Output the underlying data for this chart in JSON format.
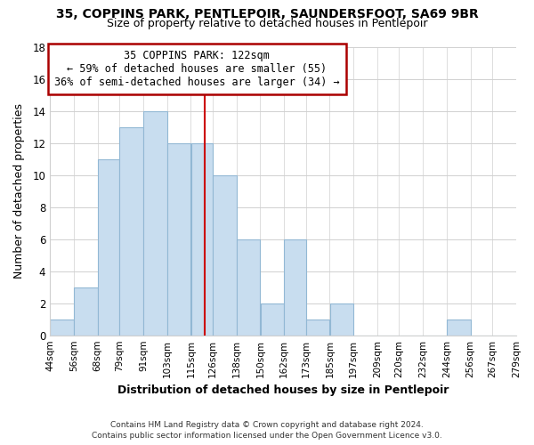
{
  "title": "35, COPPINS PARK, PENTLEPOIR, SAUNDERSFOOT, SA69 9BR",
  "subtitle": "Size of property relative to detached houses in Pentlepoir",
  "xlabel": "Distribution of detached houses by size in Pentlepoir",
  "ylabel": "Number of detached properties",
  "bar_color": "#c8ddef",
  "bar_edge_color": "#92b8d4",
  "background_color": "#ffffff",
  "grid_color": "#d0d0d0",
  "annotation_box_color": "#ffffff",
  "annotation_box_edge": "#aa0000",
  "vertical_line_color": "#cc0000",
  "annotation_line1": "35 COPPINS PARK: 122sqm",
  "annotation_line2": "← 59% of detached houses are smaller (55)",
  "annotation_line3": "36% of semi-detached houses are larger (34) →",
  "property_size": 122,
  "bin_labels": [
    "44sqm",
    "56sqm",
    "68sqm",
    "79sqm",
    "91sqm",
    "103sqm",
    "115sqm",
    "126sqm",
    "138sqm",
    "150sqm",
    "162sqm",
    "173sqm",
    "185sqm",
    "197sqm",
    "209sqm",
    "220sqm",
    "232sqm",
    "244sqm",
    "256sqm",
    "267sqm",
    "279sqm"
  ],
  "bin_edges": [
    44,
    56,
    68,
    79,
    91,
    103,
    115,
    126,
    138,
    150,
    162,
    173,
    185,
    197,
    209,
    220,
    232,
    244,
    256,
    267,
    279
  ],
  "bar_heights": [
    1,
    3,
    11,
    13,
    14,
    12,
    12,
    10,
    6,
    2,
    6,
    1,
    2,
    0,
    0,
    0,
    0,
    1,
    0,
    0
  ],
  "ylim": [
    0,
    18
  ],
  "yticks": [
    0,
    2,
    4,
    6,
    8,
    10,
    12,
    14,
    16,
    18
  ],
  "footer_line1": "Contains HM Land Registry data © Crown copyright and database right 2024.",
  "footer_line2": "Contains public sector information licensed under the Open Government Licence v3.0."
}
